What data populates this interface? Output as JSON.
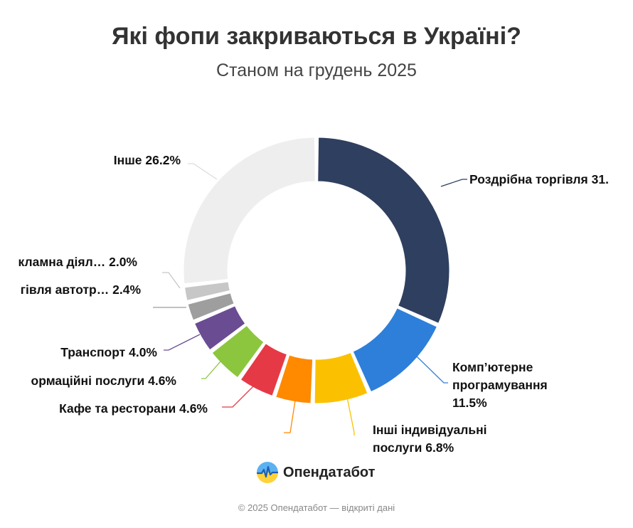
{
  "title": "Які фопи закриваються в Україні?",
  "subtitle": "Станом на грудень 2025",
  "brand": {
    "name": "Опендатабот",
    "logo_icon": "opendatabot-logo-icon"
  },
  "footer": "© 2025 Опендатабот — відкриті дані",
  "chart_data": {
    "type": "pie",
    "style": "donut",
    "title": "Які фопи закриваються в Україні?",
    "subtitle": "Станом на грудень 2025",
    "slices": [
      {
        "label": "Роздрібна торгівля 31.",
        "name": "Роздрібна торгівля",
        "value": 31.0,
        "color": "#2f3f5f"
      },
      {
        "label": "Комп’ютерне програмування 11.5%",
        "name": "Комп’ютерне програмування",
        "value": 11.5,
        "color": "#2e7fd9"
      },
      {
        "label": "Інші індивідуальні послуги 6.8%",
        "name": "Інші індивідуальні послуги",
        "value": 6.8,
        "color": "#fbc100"
      },
      {
        "label": "Кафе та ресторани 4.6%",
        "name": "",
        "value": 4.6,
        "color": "#ff8a00"
      },
      {
        "label": "Кафе та ресторани 4.6%",
        "name": "Кафе та ресторани",
        "value": 4.6,
        "color": "#e63946"
      },
      {
        "label": "ормаційні послуги 4.6%",
        "name": "ормаційні послуги",
        "value": 4.6,
        "color": "#8cc63f"
      },
      {
        "label": "Транспорт 4.0%",
        "name": "Транспорт",
        "value": 4.0,
        "color": "#6a4c93"
      },
      {
        "label": "гівля автотр… 2.4%",
        "name": "гівля автотр…",
        "value": 2.4,
        "color": "#9e9e9e"
      },
      {
        "label": "кламна діял… 2.0%",
        "name": "кламна діял…",
        "value": 2.0,
        "color": "#c7c7c7"
      },
      {
        "label": "Інше 26.2%",
        "name": "Інше",
        "value": 26.2,
        "color": "#eeeeee"
      }
    ],
    "labels": [
      {
        "lines": [
          "Роздрібна торгівля 31."
        ],
        "slice": 0
      },
      {
        "lines": [
          "Комп’ютерне",
          "програмування",
          "11.5%"
        ],
        "slice": 1
      },
      {
        "lines": [
          "Інші індивідуальні",
          "послуги 6.8%"
        ],
        "slice": 2
      },
      {
        "lines": [],
        "slice": 3
      },
      {
        "lines": [
          "Кафе та ресторани 4.6%"
        ],
        "slice": 4
      },
      {
        "lines": [
          "ормаційні послуги 4.6%"
        ],
        "slice": 5
      },
      {
        "lines": [
          "Транспорт 4.0%"
        ],
        "slice": 6
      },
      {
        "lines": [
          "гівля автотр… 2.4%"
        ],
        "slice": 7
      },
      {
        "lines": [
          "кламна діял… 2.0%"
        ],
        "slice": 8
      },
      {
        "lines": [
          "Інше 26.2%"
        ],
        "slice": 9
      }
    ]
  }
}
